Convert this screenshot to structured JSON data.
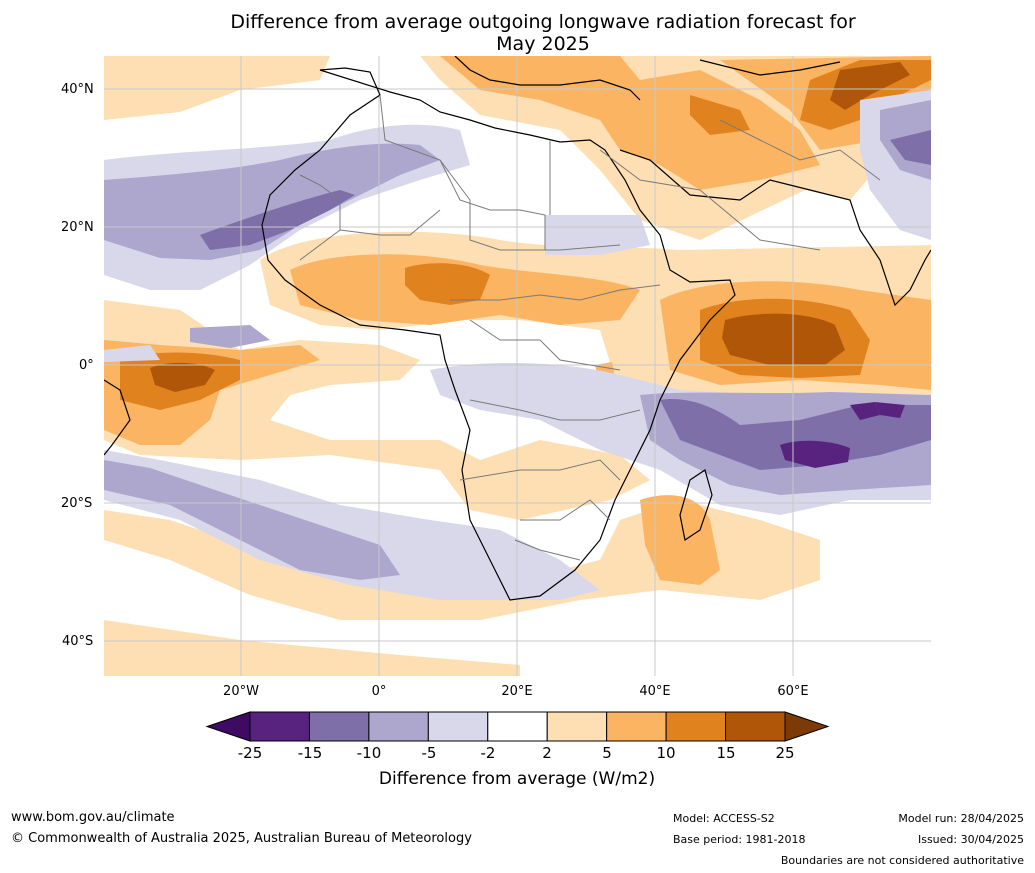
{
  "title_line1": "Difference from average outgoing longwave radiation forecast for",
  "title_line2": "May 2025",
  "lat_labels": [
    "40°N",
    "20°N",
    "0°",
    "20°S",
    "40°S"
  ],
  "lon_labels": [
    "20°W",
    "0°",
    "20°E",
    "40°E",
    "60°E"
  ],
  "colorbar": {
    "ticks": [
      "-25",
      "-15",
      "-10",
      "-5",
      "-2",
      "2",
      "5",
      "10",
      "15",
      "25"
    ],
    "colors": [
      "#3f0b62",
      "#58237f",
      "#7e6fa9",
      "#ada6cd",
      "#d8d8ea",
      "#ffffff",
      "#fddfb3",
      "#fbb462",
      "#e0821e",
      "#b05609",
      "#7c3a06"
    ],
    "label": "Difference from average (W/m2)"
  },
  "footer": {
    "website": "www.bom.gov.au/climate",
    "copyright": "© Commonwealth of Australia 2025, Australian Bureau of Meteorology",
    "model": "Model: ACCESS-S2",
    "base_period": "Base period: 1981-2018",
    "model_run": "Model run: 28/04/2025",
    "issued": "Issued: 30/04/2025",
    "disclaimer": "Boundaries are not considered authoritative"
  }
}
